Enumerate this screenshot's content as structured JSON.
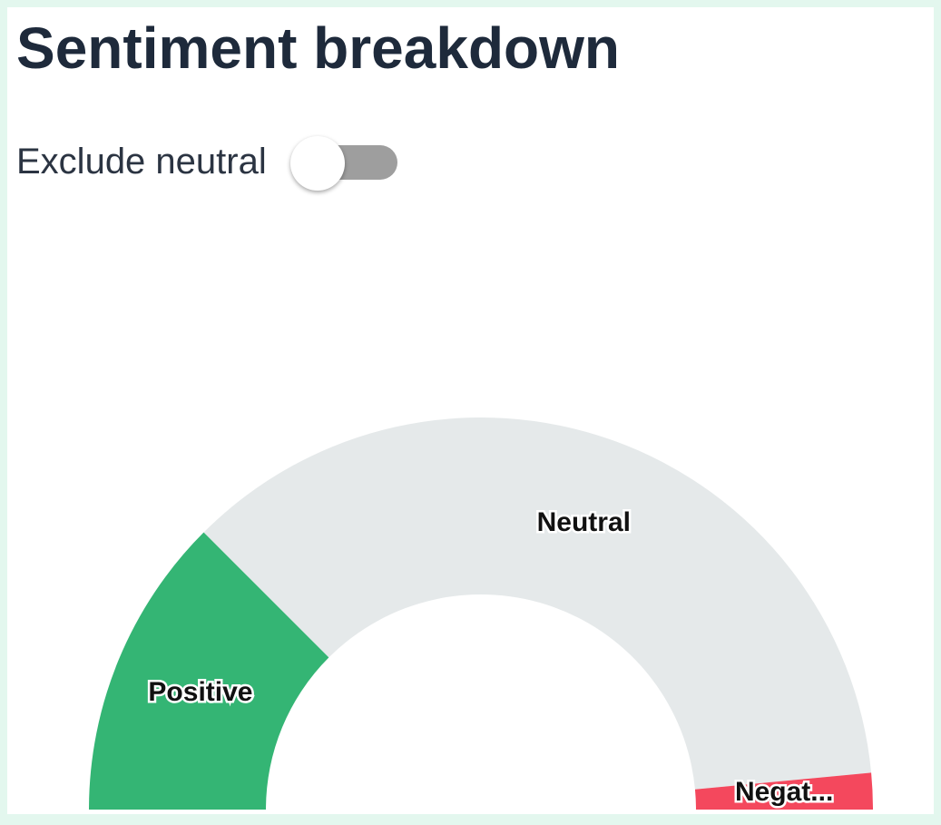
{
  "header": {
    "title": "Sentiment breakdown"
  },
  "controls": {
    "exclude_neutral_label": "Exclude neutral",
    "exclude_neutral_on": false
  },
  "colors": {
    "positive": "#34b574",
    "neutral": "#e5e9ea",
    "negative": "#f4485d",
    "toggle_track": "#9e9e9e"
  },
  "chart_data": {
    "type": "pie",
    "variant": "half-donut",
    "title": "",
    "slices": [
      {
        "label": "Positive",
        "display_label": "Positive",
        "value": 25,
        "color": "#34b574"
      },
      {
        "label": "Neutral",
        "display_label": "Neutral",
        "value": 72,
        "color": "#e5e9ea"
      },
      {
        "label": "Negative",
        "display_label": "Negat...",
        "value": 3,
        "color": "#f4485d"
      }
    ]
  }
}
